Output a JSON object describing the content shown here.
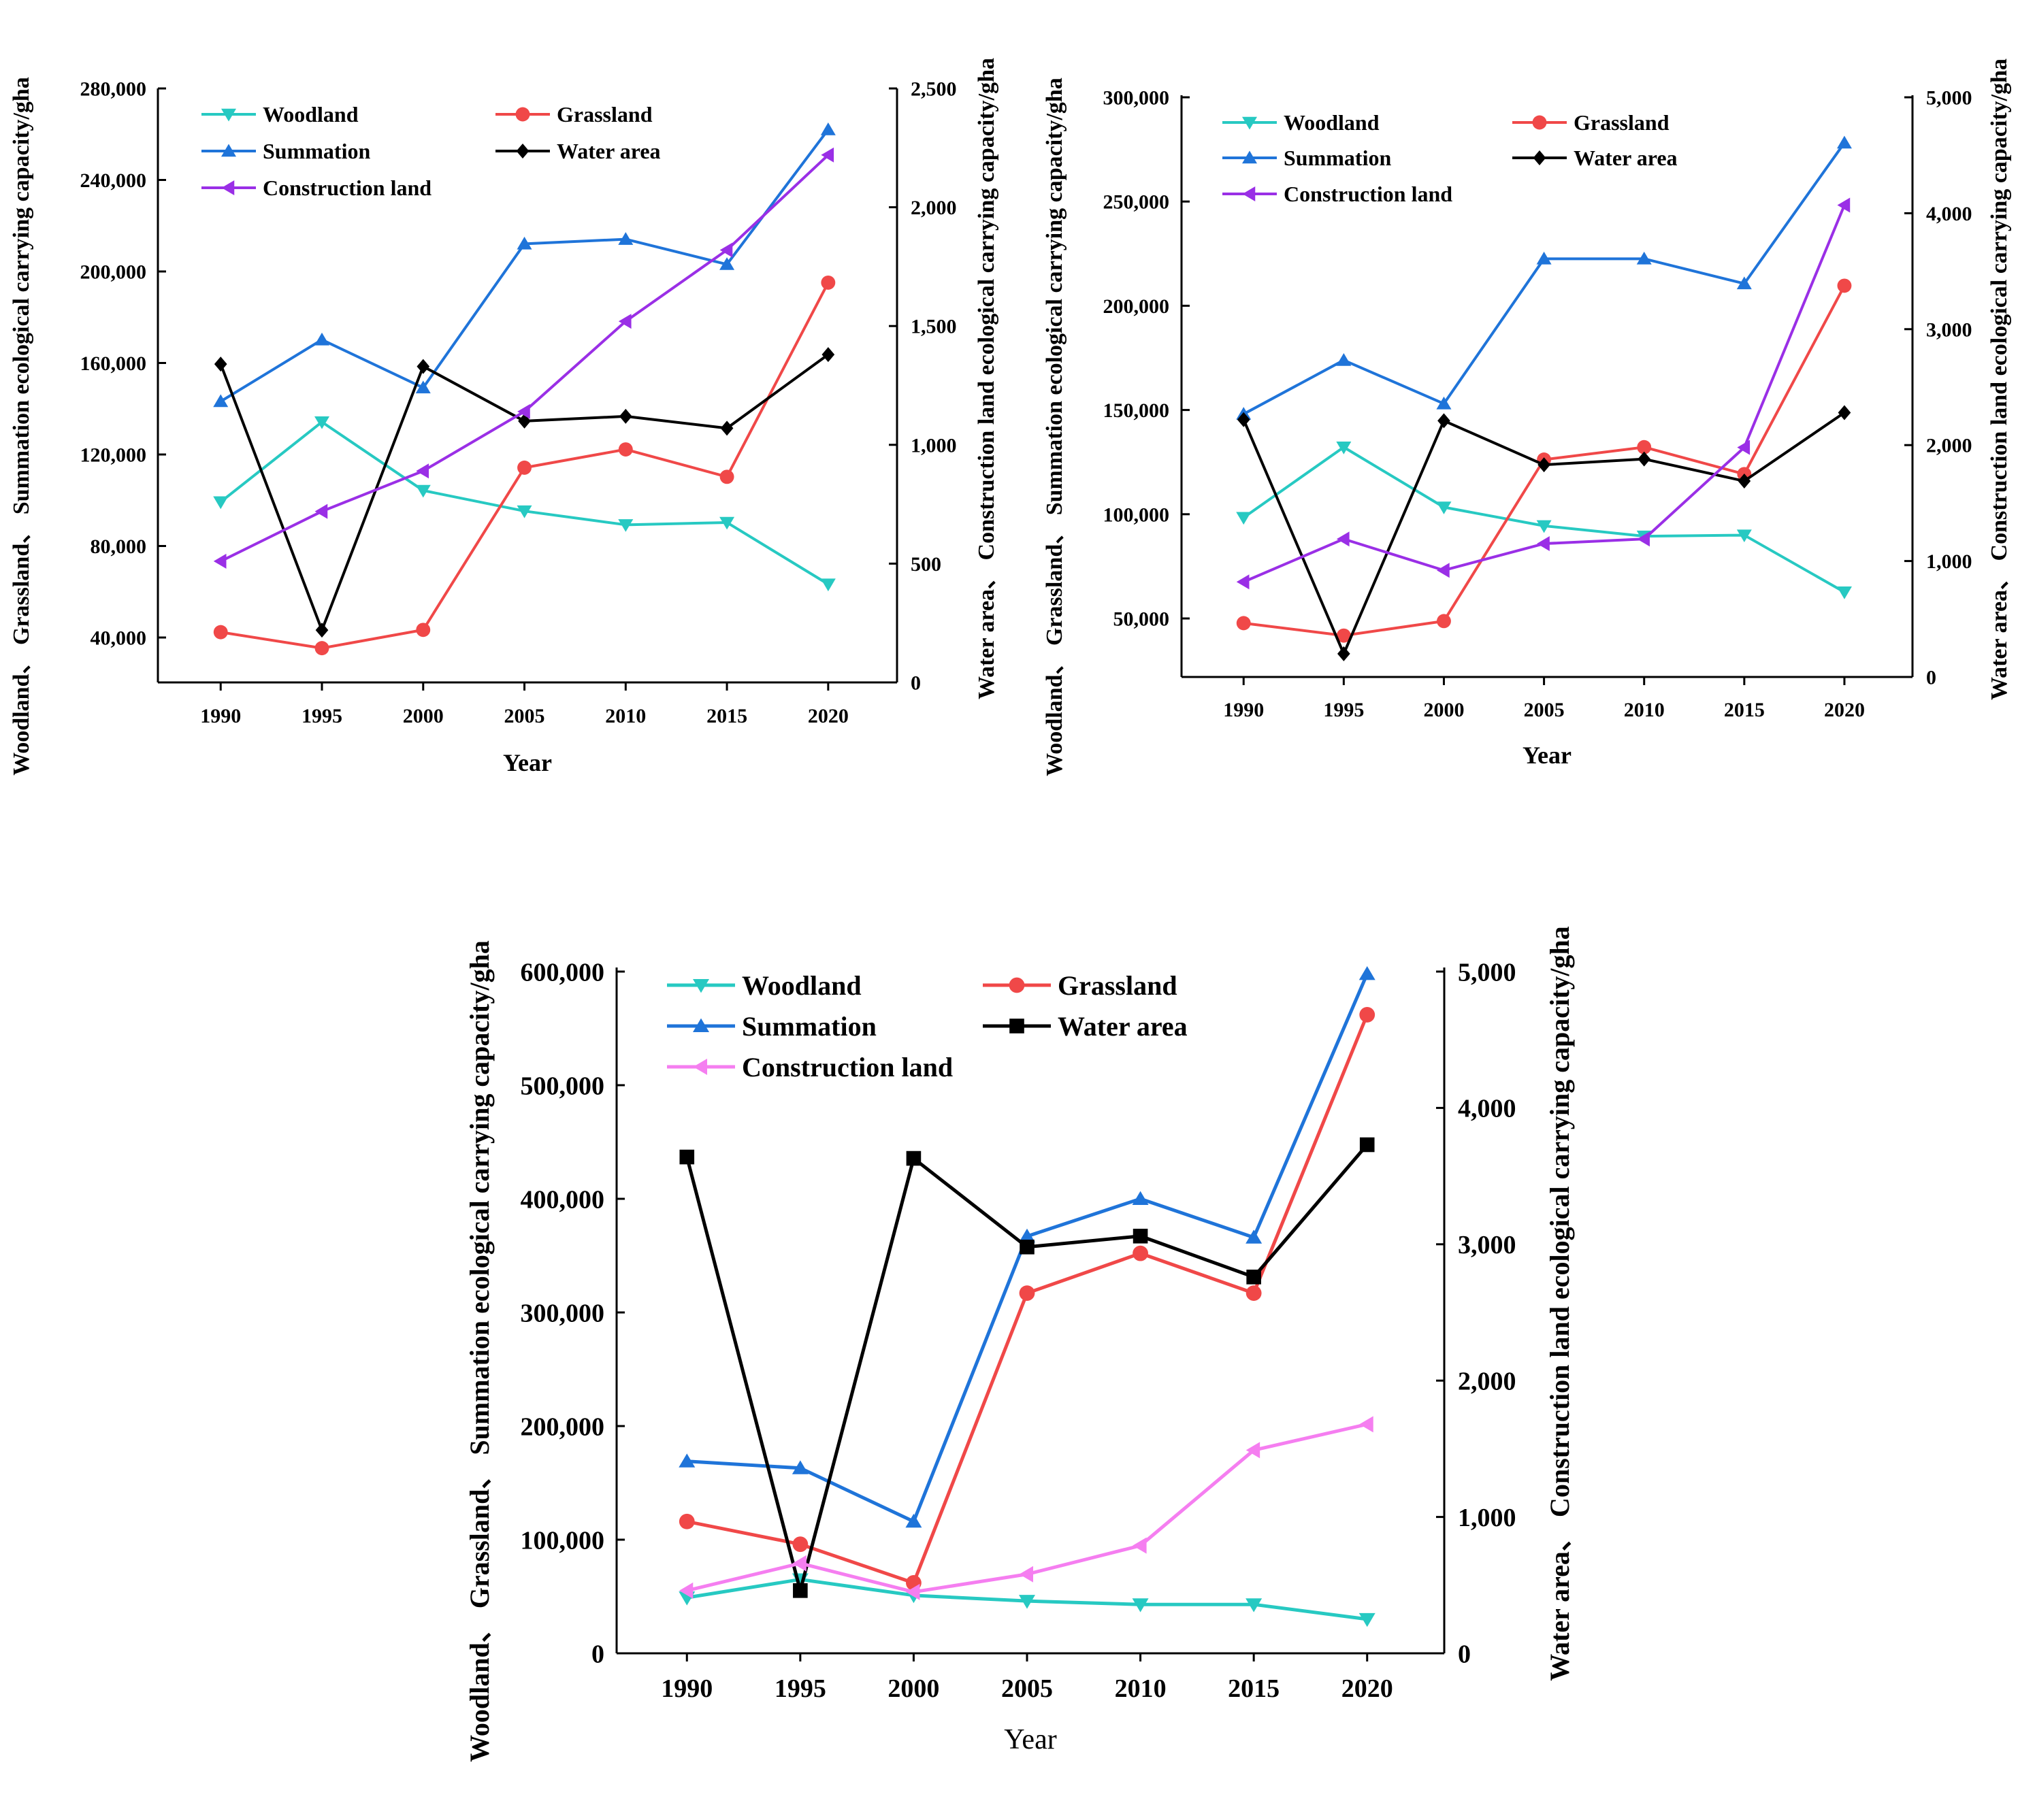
{
  "chart_data": [
    {
      "type": "line",
      "categories": [
        "1990",
        "1995",
        "2000",
        "2005",
        "2010",
        "2015",
        "2020"
      ],
      "xlabel": "Year",
      "ylabel_left": "Woodland、 Grassland、 Summation ecological carrying capacity/gha",
      "ylabel_right": "Water area、 Construction land ecological carrying capacity/gha",
      "ylim_left": [
        20000,
        280000
      ],
      "ylim_right": [
        0,
        2500
      ],
      "yticks_left": [
        "40,000",
        "80,000",
        "120,000",
        "160,000",
        "200,000",
        "240,000",
        "280,000"
      ],
      "yticks_right": [
        "0",
        "500",
        "1,000",
        "1,500",
        "2,000",
        "2,500"
      ],
      "series": [
        {
          "name": "Woodland",
          "axis": "left",
          "color": "#27c9c2",
          "marker": "triangle-down",
          "values": [
            99000,
            134000,
            104000,
            95000,
            89000,
            90000,
            63000
          ]
        },
        {
          "name": "Grassland",
          "axis": "left",
          "color": "#f04848",
          "marker": "circle",
          "values": [
            42000,
            35000,
            43000,
            114000,
            122000,
            110000,
            195000
          ]
        },
        {
          "name": "Summation",
          "axis": "left",
          "color": "#1f74d9",
          "marker": "triangle-up",
          "values": [
            143000,
            170000,
            149000,
            212000,
            214000,
            203000,
            262000
          ]
        },
        {
          "name": "Water area",
          "axis": "right",
          "color": "#000000",
          "marker": "diamond",
          "values": [
            1340,
            220,
            1330,
            1100,
            1120,
            1070,
            1380
          ]
        },
        {
          "name": "Construction land",
          "axis": "right",
          "color": "#9a2fe6",
          "marker": "triangle-left",
          "values": [
            510,
            720,
            890,
            1140,
            1520,
            1820,
            2220
          ]
        }
      ]
    },
    {
      "type": "line",
      "categories": [
        "1990",
        "1995",
        "2000",
        "2005",
        "2010",
        "2015",
        "2020"
      ],
      "xlabel": "Year",
      "ylabel_left": "Woodland、 Grassland、 Summation ecological carrying capacity/gha",
      "ylabel_right": "Water area、 Construction land ecological carrying capacity/gha",
      "ylim_left": [
        20000,
        300000
      ],
      "ylim_right": [
        0,
        5000
      ],
      "yticks_left": [
        "50,000",
        "100,000",
        "150,000",
        "200,000",
        "250,000",
        "300,000"
      ],
      "yticks_right": [
        "0",
        "1,000",
        "2,000",
        "3,000",
        "4,000",
        "5,000"
      ],
      "series": [
        {
          "name": "Woodland",
          "axis": "left",
          "color": "#27c9c2",
          "marker": "triangle-down",
          "values": [
            97000,
            131000,
            102000,
            93000,
            88000,
            88500,
            61000
          ]
        },
        {
          "name": "Grassland",
          "axis": "left",
          "color": "#f04848",
          "marker": "circle",
          "values": [
            46000,
            40000,
            47000,
            125000,
            131000,
            118000,
            209000
          ]
        },
        {
          "name": "Summation",
          "axis": "left",
          "color": "#1f74d9",
          "marker": "triangle-up",
          "values": [
            147000,
            173000,
            152000,
            222000,
            222000,
            210000,
            278000
          ]
        },
        {
          "name": "Water area",
          "axis": "right",
          "color": "#000000",
          "marker": "diamond",
          "values": [
            2220,
            200,
            2210,
            1830,
            1880,
            1690,
            2280
          ]
        },
        {
          "name": "Construction land",
          "axis": "right",
          "color": "#9a2fe6",
          "marker": "triangle-left",
          "values": [
            820,
            1190,
            920,
            1150,
            1190,
            1980,
            4070
          ]
        }
      ]
    },
    {
      "type": "line",
      "categories": [
        "1990",
        "1995",
        "2000",
        "2005",
        "2010",
        "2015",
        "2020"
      ],
      "xlabel": "Year",
      "ylabel_left": "Woodland、 Grassland、 Summation ecological carrying capacity/gha",
      "ylabel_right": "Water area、 Construction land ecological carrying capacity/gha",
      "ylim_left": [
        0,
        600000
      ],
      "ylim_right": [
        0,
        5000
      ],
      "yticks_left": [
        "0",
        "100,000",
        "200,000",
        "300,000",
        "400,000",
        "500,000",
        "600,000"
      ],
      "yticks_right": [
        "0",
        "1,000",
        "2,000",
        "3,000",
        "4,000",
        "5,000"
      ],
      "series": [
        {
          "name": "Woodland",
          "axis": "left",
          "color": "#27c9c2",
          "marker": "triangle-down",
          "values": [
            49000,
            65000,
            51000,
            46000,
            43000,
            43000,
            30000
          ]
        },
        {
          "name": "Grassland",
          "axis": "left",
          "color": "#f04848",
          "marker": "circle",
          "values": [
            116000,
            96000,
            62000,
            317000,
            352000,
            317000,
            562000
          ]
        },
        {
          "name": "Summation",
          "axis": "left",
          "color": "#1f74d9",
          "marker": "triangle-up",
          "values": [
            169000,
            163000,
            116000,
            367000,
            400000,
            366000,
            598000
          ]
        },
        {
          "name": "Water area",
          "axis": "right",
          "color": "#000000",
          "marker": "square",
          "values": [
            3640,
            460,
            3630,
            2980,
            3060,
            2760,
            3730
          ]
        },
        {
          "name": "Construction land",
          "axis": "right",
          "color": "#f57ef0",
          "marker": "triangle-left",
          "values": [
            460,
            660,
            450,
            580,
            790,
            1490,
            1680
          ]
        }
      ]
    }
  ]
}
